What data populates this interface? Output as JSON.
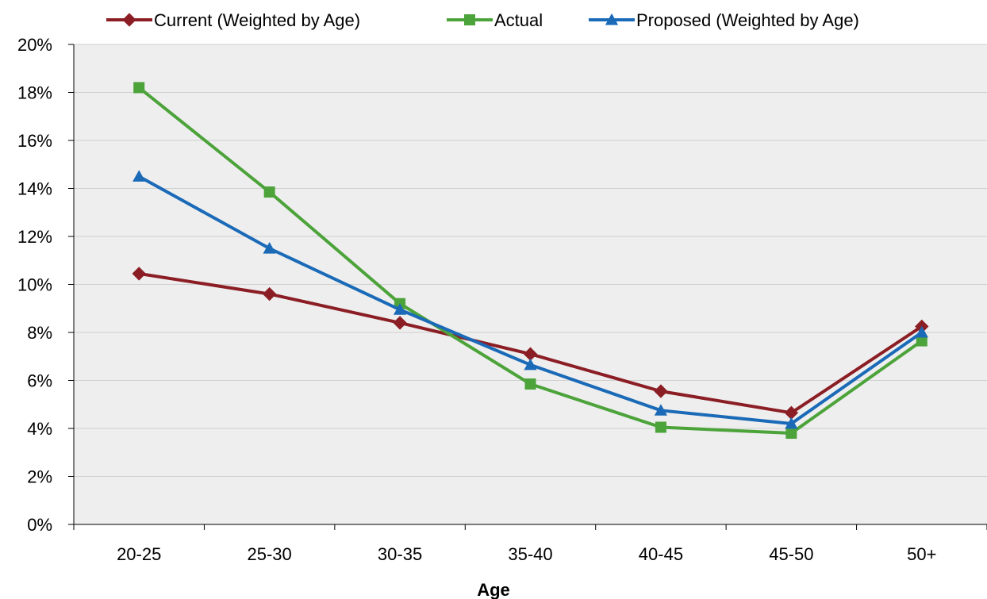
{
  "chart_data": {
    "type": "line",
    "title": "",
    "xlabel": "Age",
    "ylabel": "",
    "categories": [
      "20-25",
      "25-30",
      "30-35",
      "35-40",
      "40-45",
      "45-50",
      "50+"
    ],
    "ylim": [
      0,
      20
    ],
    "yticks": [
      0,
      2,
      4,
      6,
      8,
      10,
      12,
      14,
      16,
      18,
      20
    ],
    "y_tick_suffix": "%",
    "grid": true,
    "legend_position": "top",
    "plot_background": "#eeeeee",
    "series": [
      {
        "name": "Current (Weighted by Age)",
        "color": "#8b1e24",
        "marker": "diamond",
        "values": [
          10.45,
          9.6,
          8.4,
          7.1,
          5.55,
          4.65,
          8.25
        ]
      },
      {
        "name": "Actual",
        "color": "#4ca33a",
        "marker": "square",
        "values": [
          18.2,
          13.85,
          9.2,
          5.85,
          4.05,
          3.8,
          7.65
        ]
      },
      {
        "name": "Proposed (Weighted by Age)",
        "color": "#1a6ab8",
        "marker": "triangle",
        "values": [
          14.5,
          11.5,
          8.95,
          6.65,
          4.75,
          4.2,
          8.0
        ]
      }
    ]
  }
}
